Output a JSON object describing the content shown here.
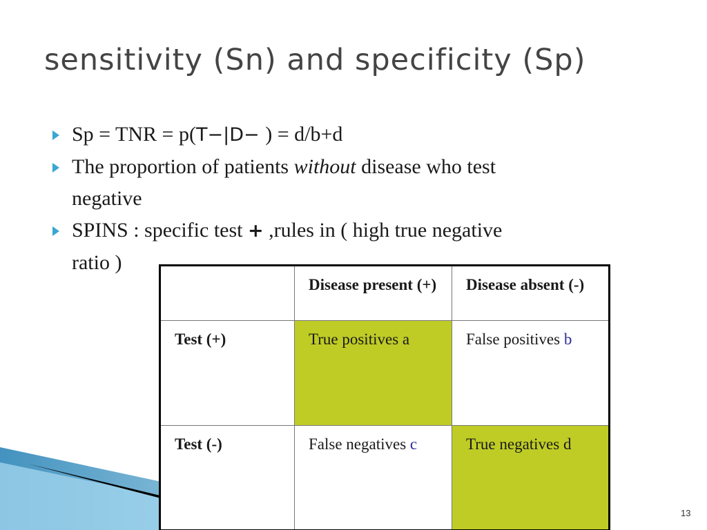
{
  "slide": {
    "title": "sensitivity (Sn) and specificity (Sp)",
    "page_number": "13",
    "bullets": [
      {
        "pre": "Sp = TNR = p(",
        "sans": "T−|D− ",
        "post": ") = d/b+d"
      },
      {
        "pre": "The proportion of patients ",
        "italic": "without",
        "post": " disease who test",
        "cont": "negative"
      },
      {
        "pre": "SPINS : specific test ",
        "sans": "+",
        "post": " ,rules in ( high true negative",
        "cont": "ratio )"
      }
    ],
    "table": {
      "header": [
        "",
        "Disease present (+)",
        "Disease absent (-)"
      ],
      "rows": [
        {
          "label": "Test  (+)",
          "cells": [
            {
              "text": "True positives  a",
              "letter": ""
            },
            {
              "text": "False positives ",
              "letter": "b"
            }
          ]
        },
        {
          "label": "Test  (-)",
          "cells": [
            {
              "text": "False negatives ",
              "letter": "c"
            },
            {
              "text": "True negatives d",
              "letter": ""
            }
          ]
        }
      ]
    },
    "colors": {
      "highlight": "#bfcc25",
      "bullet_arrow": "#3aa6d4",
      "letter_blue": "#2d2d9a"
    }
  }
}
